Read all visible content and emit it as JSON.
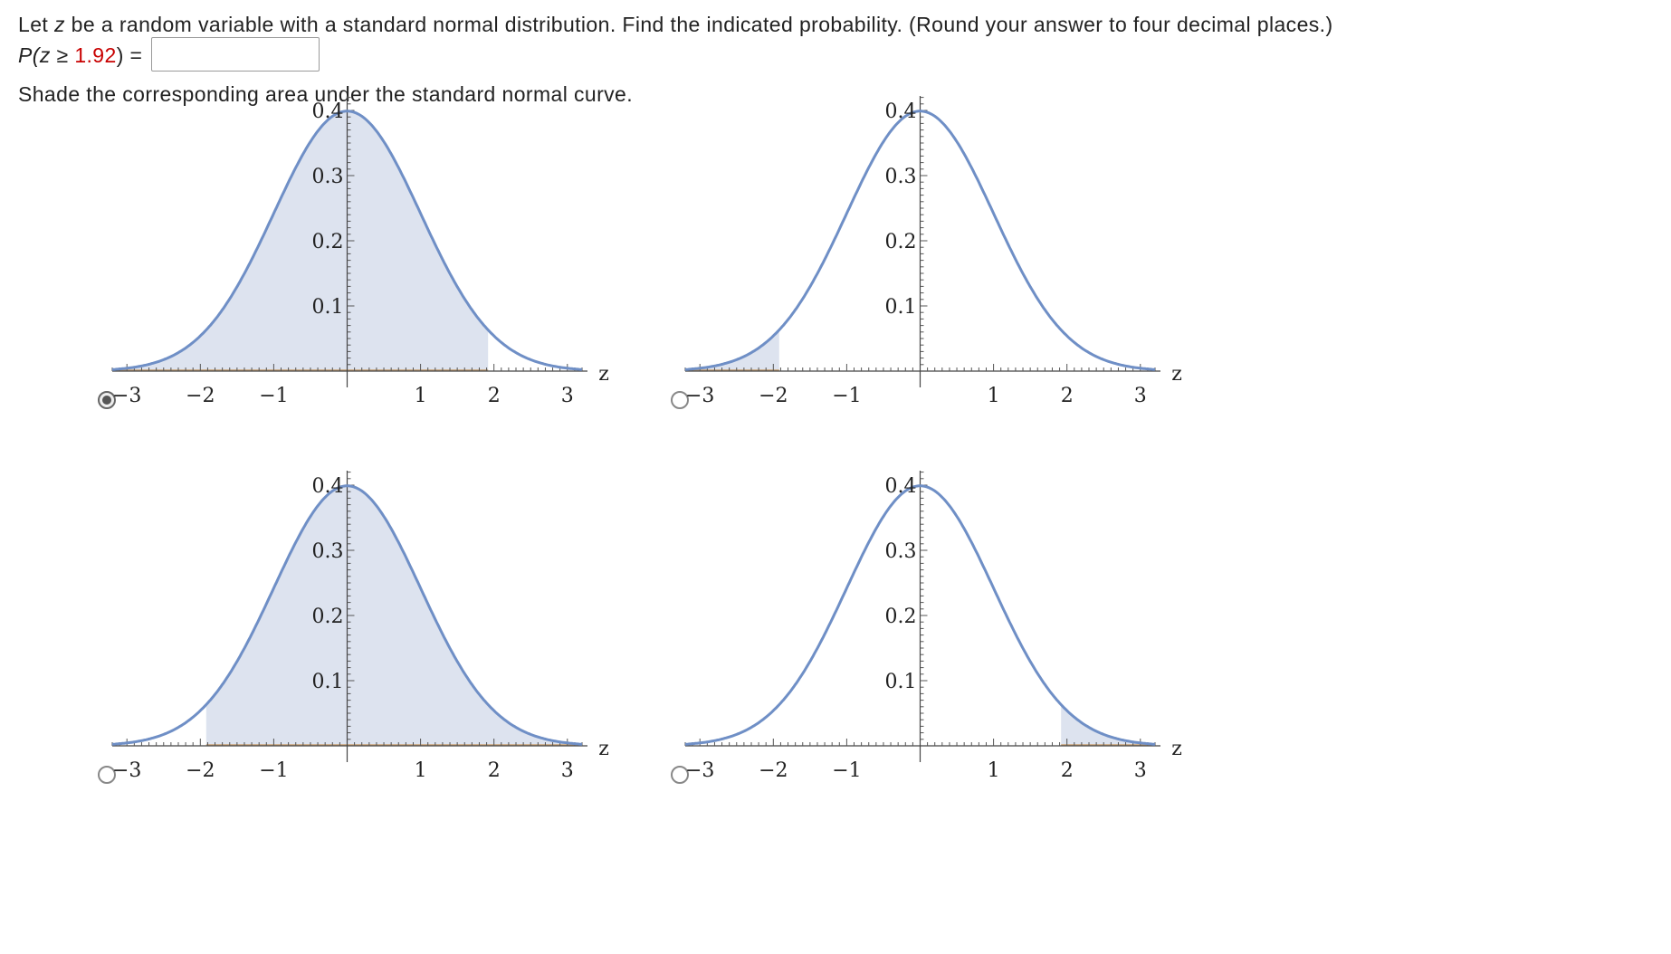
{
  "question": {
    "instruction_prefix": "Let ",
    "instruction_var": "z",
    "instruction_suffix": " be a random variable with a standard normal distribution. Find the indicated probability. (Round your answer to four decimal places.)",
    "prob_P": "P(",
    "prob_var": "z",
    "prob_ge": " ≥ ",
    "prob_value": "1.92",
    "prob_close": ") =",
    "answer_value": "",
    "shade_instruction": "Shade the corresponding area under the standard normal curve."
  },
  "colors": {
    "curve": "#6f8fc6",
    "fill": "#dde3ef",
    "axis_fill_line": "#c8a070",
    "red_value": "#c80000"
  },
  "options": [
    {
      "label": "option-left-of-2",
      "shade_from": -3.2,
      "shade_to": 1.92,
      "selected": true
    },
    {
      "label": "option-left-tail",
      "shade_from": -3.2,
      "shade_to": -1.92,
      "selected": false
    },
    {
      "label": "option-right-of-neg2",
      "shade_from": -1.92,
      "shade_to": 3.2,
      "selected": false
    },
    {
      "label": "option-right-tail",
      "shade_from": 1.92,
      "shade_to": 3.2,
      "selected": false
    }
  ],
  "axis": {
    "x_ticks": [
      "−3",
      "−2",
      "−1",
      "1",
      "2",
      "3"
    ],
    "x_tick_values": [
      -3,
      -2,
      -1,
      1,
      2,
      3
    ],
    "y_ticks": [
      "0.1",
      "0.2",
      "0.3",
      "0.4"
    ],
    "y_tick_values": [
      0.1,
      0.2,
      0.3,
      0.4
    ],
    "x_label": "z",
    "xlim": [
      -3.2,
      3.2
    ],
    "ylim": [
      0,
      0.4
    ]
  }
}
